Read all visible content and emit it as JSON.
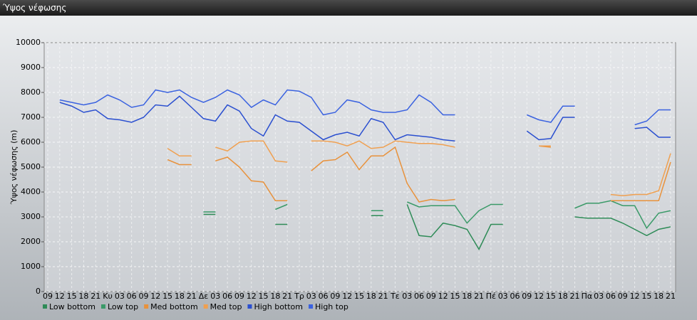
{
  "window_title": "Ύψος νέφωσης",
  "chart_data": {
    "type": "line",
    "ylabel": "Ύψος νέφωσης (m)",
    "categories": [
      "09",
      "12",
      "15",
      "18",
      "21",
      "Κυ",
      "03",
      "06",
      "09",
      "12",
      "15",
      "18",
      "21",
      "Δε",
      "03",
      "06",
      "09",
      "12",
      "15",
      "18",
      "21",
      "Τρ",
      "03",
      "06",
      "09",
      "12",
      "15",
      "18",
      "21",
      "Τε",
      "03",
      "06",
      "09",
      "12",
      "15",
      "18",
      "21",
      "Πέ",
      "03",
      "06",
      "09",
      "12",
      "15",
      "18",
      "21",
      "Πα",
      "03",
      "06",
      "09",
      "12",
      "15",
      "18",
      "21"
    ],
    "ylim": [
      0,
      10000
    ],
    "yticks": [
      0,
      1000,
      2000,
      3000,
      4000,
      5000,
      6000,
      7000,
      8000,
      9000,
      10000
    ],
    "grid": true,
    "legend": "bottom",
    "series": [
      {
        "name": "Low bottom",
        "color": "#2e8b57",
        "values": [
          null,
          null,
          null,
          null,
          null,
          null,
          null,
          null,
          null,
          null,
          null,
          null,
          null,
          3100,
          3100,
          null,
          null,
          null,
          null,
          2700,
          2700,
          null,
          null,
          null,
          null,
          null,
          null,
          3050,
          3050,
          null,
          3500,
          2250,
          2200,
          2750,
          2650,
          2500,
          1700,
          2700,
          2700,
          null,
          null,
          null,
          null,
          null,
          3000,
          2950,
          2950,
          2950,
          2750,
          2500,
          2250,
          2500,
          2600
        ]
      },
      {
        "name": "Low top",
        "color": "#3a9a68",
        "values": [
          null,
          null,
          null,
          null,
          null,
          null,
          null,
          null,
          null,
          null,
          null,
          null,
          null,
          3200,
          3200,
          null,
          null,
          null,
          null,
          3300,
          3500,
          null,
          null,
          null,
          null,
          null,
          null,
          3250,
          3250,
          null,
          3600,
          3400,
          3450,
          3450,
          3450,
          2750,
          3250,
          3500,
          3500,
          null,
          null,
          null,
          null,
          null,
          3350,
          3550,
          3550,
          3650,
          3450,
          3450,
          2550,
          3150,
          3250
        ]
      },
      {
        "name": "Med bottom",
        "color": "#e8923c",
        "values": [
          null,
          null,
          null,
          null,
          null,
          null,
          null,
          null,
          null,
          null,
          5300,
          5100,
          5100,
          null,
          5250,
          5400,
          5000,
          4450,
          4400,
          3650,
          3650,
          null,
          4850,
          5250,
          5300,
          5600,
          4900,
          5450,
          5450,
          5800,
          4350,
          3600,
          3700,
          3650,
          3700,
          null,
          null,
          null,
          null,
          null,
          null,
          5850,
          5800,
          null,
          null,
          null,
          null,
          3650,
          3650,
          3650,
          3650,
          3650,
          5200
        ]
      },
      {
        "name": "Med top",
        "color": "#f0a050",
        "values": [
          null,
          null,
          null,
          null,
          null,
          null,
          null,
          null,
          null,
          null,
          5750,
          5450,
          5450,
          null,
          5800,
          5650,
          6000,
          6050,
          6050,
          5250,
          5200,
          null,
          6050,
          6050,
          6000,
          5850,
          6050,
          5750,
          5800,
          6050,
          6000,
          5950,
          5950,
          5900,
          5800,
          null,
          null,
          null,
          null,
          null,
          null,
          5850,
          5850,
          null,
          null,
          null,
          null,
          3900,
          3850,
          3900,
          3900,
          4050,
          5550
        ]
      },
      {
        "name": "High bottom",
        "color": "#2a4fd0",
        "values": [
          null,
          7600,
          7450,
          7200,
          7300,
          6950,
          6900,
          6800,
          7000,
          7500,
          7450,
          7850,
          7400,
          6950,
          6850,
          7500,
          7250,
          6550,
          6250,
          7100,
          6850,
          6800,
          6450,
          6100,
          6300,
          6400,
          6250,
          6950,
          6800,
          6100,
          6300,
          6250,
          6200,
          6100,
          6050,
          null,
          null,
          null,
          null,
          null,
          6450,
          6100,
          6150,
          7000,
          7000,
          null,
          null,
          null,
          null,
          6550,
          6600,
          6200,
          6200
        ]
      },
      {
        "name": "High top",
        "color": "#3a62e0",
        "values": [
          null,
          7700,
          7600,
          7500,
          7600,
          7900,
          7700,
          7400,
          7500,
          8100,
          8000,
          8100,
          7800,
          7600,
          7800,
          8100,
          7900,
          7400,
          7700,
          7500,
          8100,
          8050,
          7800,
          7100,
          7200,
          7700,
          7600,
          7300,
          7200,
          7200,
          7300,
          7900,
          7600,
          7100,
          7100,
          null,
          null,
          null,
          null,
          null,
          7100,
          6900,
          6800,
          7450,
          7450,
          null,
          null,
          null,
          null,
          6700,
          6850,
          7300,
          7300
        ]
      }
    ]
  }
}
